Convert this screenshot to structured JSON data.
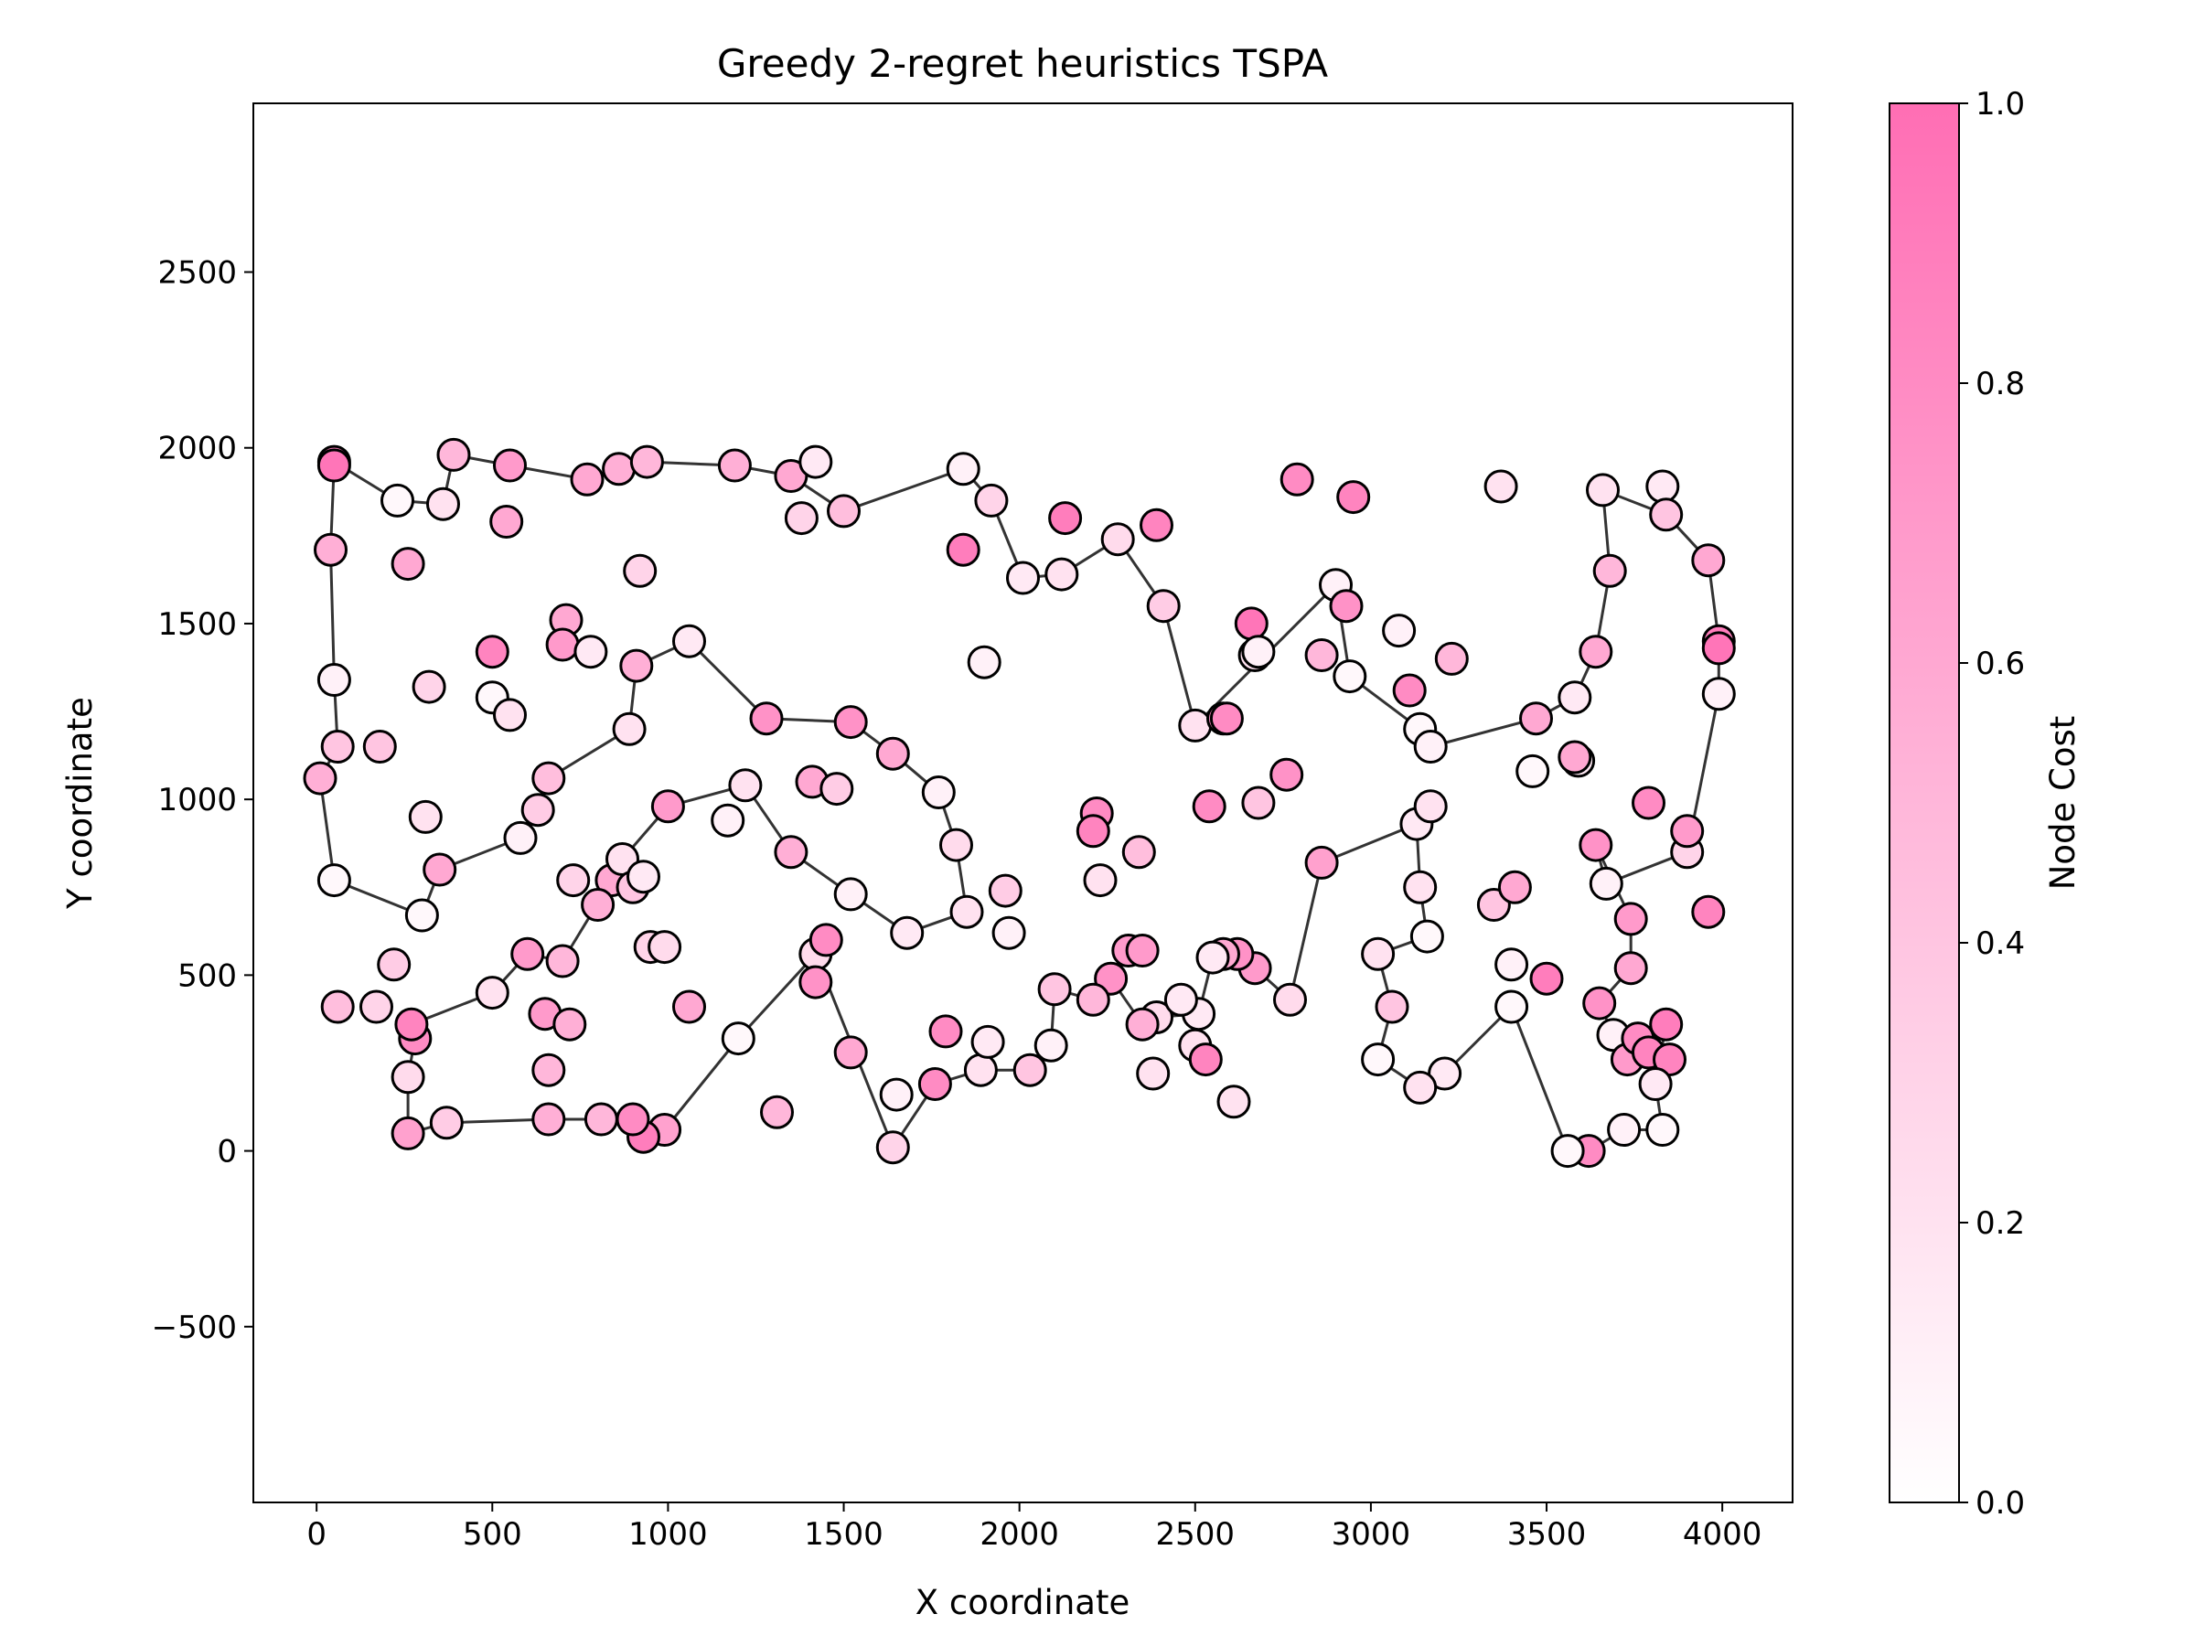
{
  "chart_data": {
    "type": "scatter",
    "title": "Greedy 2-regret heuristics TSPA",
    "xlabel": "X coordinate",
    "ylabel": "Y coordinate",
    "xlim": [
      -180,
      4200
    ],
    "ylim": [
      -1000,
      2980
    ],
    "xticks": [
      0,
      500,
      1000,
      1500,
      2000,
      2500,
      3000,
      3500,
      4000
    ],
    "yticks": [
      -500,
      0,
      500,
      1000,
      1500,
      2000,
      2500
    ],
    "xtick_labels": [
      "0",
      "500",
      "1000",
      "1500",
      "2000",
      "2500",
      "3000",
      "3500",
      "4000"
    ],
    "ytick_labels": [
      "−500",
      "0",
      "500",
      "1000",
      "1500",
      "2000",
      "2500"
    ],
    "colorbar": {
      "label": "Node Cost",
      "range": [
        0,
        1
      ],
      "ticks": [
        0.0,
        0.2,
        0.4,
        0.6,
        0.8,
        1.0
      ],
      "tick_labels": [
        "0.0",
        "0.2",
        "0.4",
        "0.6",
        "0.8",
        "1.0"
      ],
      "color_low": "#ffffff",
      "color_high": "#ff6eb4"
    },
    "marker_edge_color": "#000000",
    "path_color": "#333333",
    "points": [
      [
        50,
        1960,
        0.9
      ],
      [
        230,
        1850,
        0.05
      ],
      [
        360,
        1840,
        0.2
      ],
      [
        390,
        1980,
        0.5
      ],
      [
        550,
        1950,
        0.7
      ],
      [
        770,
        1910,
        0.6
      ],
      [
        860,
        1940,
        0.55
      ],
      [
        940,
        1960,
        0.5
      ],
      [
        1190,
        1950,
        0.55
      ],
      [
        1350,
        1920,
        0.6
      ],
      [
        1420,
        1960,
        0.15
      ],
      [
        1500,
        1820,
        0.45
      ],
      [
        1840,
        1940,
        0.1
      ],
      [
        1920,
        1850,
        0.3
      ],
      [
        2010,
        1630,
        0.15
      ],
      [
        2120,
        1640,
        0.2
      ],
      [
        2280,
        1740,
        0.25
      ],
      [
        2410,
        1550,
        0.35
      ],
      [
        2500,
        1210,
        0.2
      ],
      [
        2900,
        1610,
        0.1
      ],
      [
        2940,
        1350,
        0.05
      ],
      [
        3140,
        1200,
        0.05
      ],
      [
        3170,
        1150,
        0.1
      ],
      [
        3470,
        1230,
        0.6
      ],
      [
        3580,
        1290,
        0.15
      ],
      [
        3640,
        1420,
        0.6
      ],
      [
        3680,
        1650,
        0.5
      ],
      [
        3660,
        1880,
        0.2
      ],
      [
        3830,
        1890,
        0.15
      ],
      [
        3840,
        1810,
        0.4
      ],
      [
        3960,
        1680,
        0.6
      ],
      [
        3990,
        1450,
        0.9
      ],
      [
        3990,
        1430,
        0.95
      ],
      [
        3990,
        1300,
        0.1
      ],
      [
        3900,
        850,
        0.3
      ],
      [
        3900,
        910,
        0.7
      ],
      [
        3670,
        760,
        0.1
      ],
      [
        3640,
        870,
        0.75
      ],
      [
        3740,
        660,
        0.7
      ],
      [
        3740,
        520,
        0.6
      ],
      [
        3650,
        420,
        0.75
      ],
      [
        3690,
        330,
        0.1
      ],
      [
        3730,
        260,
        0.7
      ],
      [
        3760,
        320,
        0.8
      ],
      [
        3790,
        280,
        0.85
      ],
      [
        3840,
        360,
        0.9
      ],
      [
        3850,
        260,
        0.85
      ],
      [
        3810,
        190,
        0.15
      ],
      [
        3830,
        60,
        0.05
      ],
      [
        3720,
        60,
        0.1
      ],
      [
        3620,
        0,
        0.8
      ],
      [
        3560,
        0,
        0.05
      ],
      [
        3400,
        410,
        0.05
      ],
      [
        3210,
        220,
        0.15
      ],
      [
        3140,
        180,
        0.2
      ],
      [
        3020,
        260,
        0.05
      ],
      [
        3060,
        410,
        0.4
      ],
      [
        3020,
        560,
        0.2
      ],
      [
        3160,
        610,
        0.05
      ],
      [
        3140,
        750,
        0.2
      ],
      [
        3130,
        930,
        0.15
      ],
      [
        2860,
        820,
        0.65
      ],
      [
        2770,
        430,
        0.25
      ],
      [
        2670,
        520,
        0.7
      ],
      [
        2620,
        560,
        0.75
      ],
      [
        2580,
        560,
        0.6
      ],
      [
        2550,
        550,
        0.15
      ],
      [
        2510,
        390,
        0.15
      ],
      [
        2390,
        380,
        0.25
      ],
      [
        2350,
        360,
        0.55
      ],
      [
        2260,
        490,
        0.75
      ],
      [
        2210,
        430,
        0.5
      ],
      [
        2100,
        460,
        0.4
      ],
      [
        2090,
        300,
        0.1
      ],
      [
        2030,
        230,
        0.4
      ],
      [
        1890,
        230,
        0.2
      ],
      [
        1760,
        190,
        0.8
      ],
      [
        1640,
        10,
        0.3
      ],
      [
        1420,
        560,
        0.25
      ],
      [
        1450,
        600,
        0.8
      ],
      [
        1200,
        320,
        0.05
      ],
      [
        990,
        60,
        0.65
      ],
      [
        930,
        40,
        0.9
      ],
      [
        900,
        90,
        0.8
      ],
      [
        810,
        90,
        0.5
      ],
      [
        660,
        90,
        0.55
      ],
      [
        370,
        80,
        0.35
      ],
      [
        260,
        50,
        0.65
      ],
      [
        260,
        210,
        0.25
      ],
      [
        280,
        320,
        0.8
      ],
      [
        270,
        360,
        0.85
      ],
      [
        500,
        450,
        0.2
      ],
      [
        600,
        560,
        0.7
      ],
      [
        700,
        540,
        0.5
      ],
      [
        840,
        770,
        0.6
      ],
      [
        870,
        830,
        0.2
      ],
      [
        1000,
        980,
        0.7
      ],
      [
        1220,
        1040,
        0.2
      ],
      [
        1350,
        850,
        0.55
      ],
      [
        1520,
        730,
        0.1
      ],
      [
        1680,
        620,
        0.15
      ],
      [
        1850,
        680,
        0.2
      ],
      [
        1820,
        870,
        0.25
      ],
      [
        1770,
        1020,
        0.1
      ],
      [
        1640,
        1130,
        0.6
      ],
      [
        1520,
        1220,
        0.75
      ],
      [
        1280,
        1230,
        0.75
      ],
      [
        1060,
        1450,
        0.15
      ],
      [
        910,
        1380,
        0.55
      ],
      [
        890,
        1200,
        0.2
      ],
      [
        660,
        1060,
        0.45
      ],
      [
        580,
        890,
        0.1
      ],
      [
        350,
        800,
        0.6
      ],
      [
        300,
        670,
        0.05
      ],
      [
        50,
        770,
        0.05
      ],
      [
        10,
        1060,
        0.55
      ],
      [
        60,
        1150,
        0.4
      ],
      [
        50,
        1340,
        0.1
      ],
      [
        40,
        1710,
        0.55
      ],
      [
        50,
        1950,
        0.95
      ],
      [
        260,
        1670,
        0.6
      ],
      [
        540,
        1790,
        0.6
      ],
      [
        500,
        1420,
        0.85
      ],
      [
        710,
        1510,
        0.6
      ],
      [
        700,
        1440,
        0.7
      ],
      [
        780,
        1420,
        0.15
      ],
      [
        920,
        1650,
        0.3
      ],
      [
        320,
        1320,
        0.3
      ],
      [
        500,
        1290,
        0.05
      ],
      [
        550,
        1240,
        0.2
      ],
      [
        180,
        1150,
        0.4
      ],
      [
        310,
        950,
        0.2
      ],
      [
        630,
        970,
        0.35
      ],
      [
        730,
        770,
        0.3
      ],
      [
        800,
        700,
        0.55
      ],
      [
        900,
        750,
        0.4
      ],
      [
        930,
        780,
        0.15
      ],
      [
        950,
        580,
        0.3
      ],
      [
        990,
        580,
        0.25
      ],
      [
        1060,
        410,
        0.6
      ],
      [
        1170,
        940,
        0.1
      ],
      [
        1410,
        1050,
        0.6
      ],
      [
        1480,
        1030,
        0.35
      ],
      [
        1420,
        480,
        0.75
      ],
      [
        1520,
        280,
        0.6
      ],
      [
        1310,
        110,
        0.5
      ],
      [
        1650,
        160,
        0.1
      ],
      [
        1790,
        340,
        0.8
      ],
      [
        1910,
        310,
        0.15
      ],
      [
        1970,
        620,
        0.1
      ],
      [
        1960,
        740,
        0.35
      ],
      [
        1900,
        1390,
        0.1
      ],
      [
        1840,
        1710,
        0.9
      ],
      [
        2130,
        1800,
        0.9
      ],
      [
        2390,
        1780,
        0.85
      ],
      [
        2220,
        960,
        0.8
      ],
      [
        2210,
        910,
        0.85
      ],
      [
        2230,
        770,
        0.2
      ],
      [
        2340,
        850,
        0.45
      ],
      [
        2310,
        570,
        0.7
      ],
      [
        2350,
        570,
        0.7
      ],
      [
        2380,
        220,
        0.2
      ],
      [
        2460,
        430,
        0.15
      ],
      [
        2500,
        300,
        0.2
      ],
      [
        2530,
        260,
        0.85
      ],
      [
        2610,
        140,
        0.2
      ],
      [
        2540,
        980,
        0.8
      ],
      [
        2580,
        1230,
        0.75
      ],
      [
        2590,
        1230,
        0.8
      ],
      [
        2660,
        1500,
        0.95
      ],
      [
        2670,
        1410,
        0.2
      ],
      [
        2680,
        1420,
        0.1
      ],
      [
        2680,
        990,
        0.4
      ],
      [
        2760,
        1070,
        0.75
      ],
      [
        2790,
        1910,
        0.8
      ],
      [
        2950,
        1860,
        0.85
      ],
      [
        2930,
        1550,
        0.75
      ],
      [
        2860,
        1410,
        0.5
      ],
      [
        3080,
        1480,
        0.1
      ],
      [
        3110,
        1310,
        0.8
      ],
      [
        3230,
        1400,
        0.5
      ],
      [
        3170,
        980,
        0.2
      ],
      [
        3350,
        700,
        0.4
      ],
      [
        3410,
        750,
        0.6
      ],
      [
        3400,
        530,
        0.1
      ],
      [
        3500,
        490,
        0.9
      ],
      [
        3370,
        1890,
        0.2
      ],
      [
        3590,
        1110,
        0.15
      ],
      [
        3460,
        1080,
        0.05
      ],
      [
        3580,
        1120,
        0.6
      ],
      [
        3790,
        990,
        0.8
      ],
      [
        3960,
        680,
        0.85
      ],
      [
        60,
        410,
        0.45
      ],
      [
        170,
        410,
        0.3
      ],
      [
        220,
        530,
        0.35
      ],
      [
        650,
        390,
        0.7
      ],
      [
        720,
        360,
        0.55
      ],
      [
        660,
        230,
        0.5
      ],
      [
        1380,
        1800,
        0.3
      ]
    ],
    "tour": [
      [
        50,
        1960
      ],
      [
        230,
        1850
      ],
      [
        360,
        1840
      ],
      [
        390,
        1980
      ],
      [
        550,
        1950
      ],
      [
        770,
        1910
      ],
      [
        860,
        1940
      ],
      [
        940,
        1960
      ],
      [
        1190,
        1950
      ],
      [
        1350,
        1920
      ],
      [
        1500,
        1820
      ],
      [
        1840,
        1940
      ],
      [
        1920,
        1850
      ],
      [
        2010,
        1630
      ],
      [
        2120,
        1640
      ],
      [
        2280,
        1740
      ],
      [
        2410,
        1550
      ],
      [
        2500,
        1210
      ],
      [
        2900,
        1610
      ],
      [
        2940,
        1350
      ],
      [
        3140,
        1200
      ],
      [
        3170,
        1150
      ],
      [
        3470,
        1230
      ],
      [
        3580,
        1290
      ],
      [
        3640,
        1420
      ],
      [
        3680,
        1650
      ],
      [
        3660,
        1880
      ],
      [
        3840,
        1810
      ],
      [
        3960,
        1680
      ],
      [
        3990,
        1450
      ],
      [
        3990,
        1300
      ],
      [
        3900,
        850
      ],
      [
        3670,
        760
      ],
      [
        3640,
        870
      ],
      [
        3740,
        660
      ],
      [
        3740,
        520
      ],
      [
        3650,
        420
      ],
      [
        3690,
        330
      ],
      [
        3760,
        320
      ],
      [
        3840,
        360
      ],
      [
        3810,
        190
      ],
      [
        3830,
        60
      ],
      [
        3720,
        60
      ],
      [
        3620,
        0
      ],
      [
        3560,
        0
      ],
      [
        3400,
        410
      ],
      [
        3210,
        220
      ],
      [
        3140,
        180
      ],
      [
        3020,
        260
      ],
      [
        3060,
        410
      ],
      [
        3020,
        560
      ],
      [
        3160,
        610
      ],
      [
        3140,
        750
      ],
      [
        3130,
        930
      ],
      [
        2860,
        820
      ],
      [
        2770,
        430
      ],
      [
        2670,
        520
      ],
      [
        2620,
        560
      ],
      [
        2550,
        550
      ],
      [
        2510,
        390
      ],
      [
        2390,
        380
      ],
      [
        2350,
        360
      ],
      [
        2260,
        490
      ],
      [
        2210,
        430
      ],
      [
        2100,
        460
      ],
      [
        2090,
        300
      ],
      [
        2030,
        230
      ],
      [
        1890,
        230
      ],
      [
        1760,
        190
      ],
      [
        1640,
        10
      ],
      [
        1420,
        560
      ],
      [
        1200,
        320
      ],
      [
        990,
        60
      ],
      [
        930,
        40
      ],
      [
        900,
        90
      ],
      [
        810,
        90
      ],
      [
        660,
        90
      ],
      [
        370,
        80
      ],
      [
        260,
        50
      ],
      [
        260,
        210
      ],
      [
        280,
        320
      ],
      [
        270,
        360
      ],
      [
        500,
        450
      ],
      [
        600,
        560
      ],
      [
        700,
        540
      ],
      [
        840,
        770
      ],
      [
        870,
        830
      ],
      [
        1000,
        980
      ],
      [
        1220,
        1040
      ],
      [
        1350,
        850
      ],
      [
        1520,
        730
      ],
      [
        1680,
        620
      ],
      [
        1850,
        680
      ],
      [
        1820,
        870
      ],
      [
        1770,
        1020
      ],
      [
        1640,
        1130
      ],
      [
        1520,
        1220
      ],
      [
        1280,
        1230
      ],
      [
        1060,
        1450
      ],
      [
        910,
        1380
      ],
      [
        890,
        1200
      ],
      [
        660,
        1060
      ],
      [
        580,
        890
      ],
      [
        350,
        800
      ],
      [
        300,
        670
      ],
      [
        50,
        770
      ],
      [
        10,
        1060
      ],
      [
        60,
        1150
      ],
      [
        50,
        1340
      ],
      [
        40,
        1710
      ],
      [
        50,
        1960
      ]
    ]
  }
}
